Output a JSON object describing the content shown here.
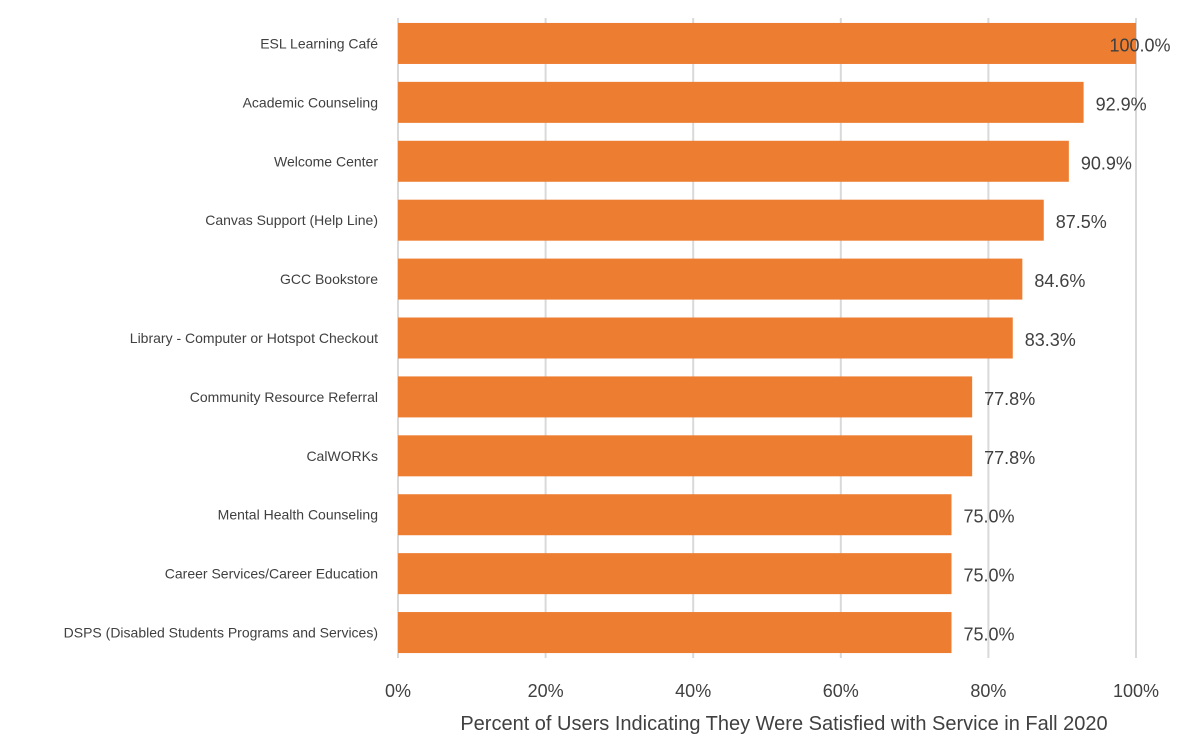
{
  "chart_data": {
    "type": "bar",
    "orientation": "horizontal",
    "categories": [
      "ESL Learning Café",
      "Academic Counseling",
      "Welcome Center",
      "Canvas Support (Help Line)",
      "GCC Bookstore",
      "Library - Computer or Hotspot Checkout",
      "Community Resource Referral",
      "CalWORKs",
      "Mental Health Counseling",
      "Career Services/Career Education",
      "DSPS (Disabled Students Programs and Services)"
    ],
    "values": [
      100.0,
      92.9,
      90.9,
      87.5,
      84.6,
      83.3,
      77.8,
      77.8,
      75.0,
      75.0,
      75.0
    ],
    "data_labels": [
      "100.0%",
      "92.9%",
      "90.9%",
      "87.5%",
      "84.6%",
      "83.3%",
      "77.8%",
      "77.8%",
      "75.0%",
      "75.0%",
      "75.0%"
    ],
    "xlim": [
      0,
      100
    ],
    "x_ticks": [
      0,
      20,
      40,
      60,
      80,
      100
    ],
    "x_tick_labels": [
      "0%",
      "20%",
      "40%",
      "60%",
      "80%",
      "100%"
    ],
    "xlabel": "Percent of Users Indicating They Were Satisfied with Service in Fall 2020",
    "ylabel": "",
    "title": "",
    "grid": "vertical",
    "legend": "none",
    "bar_color": "#ED7D31"
  }
}
